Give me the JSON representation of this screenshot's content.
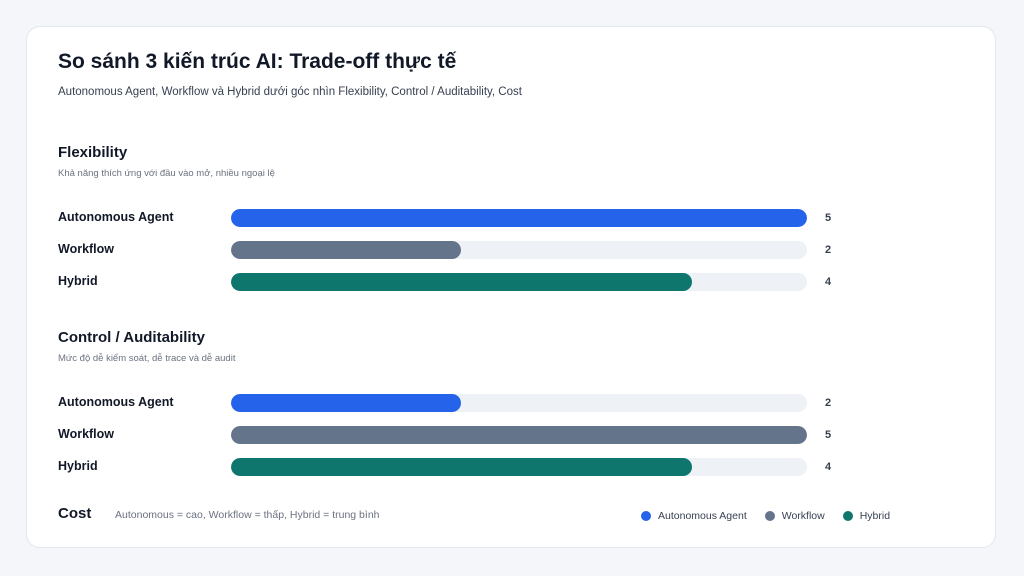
{
  "title": "So sánh 3 kiến trúc AI: Trade-off thực tế",
  "subtitle": "Autonomous Agent, Workflow và Hybrid dưới góc nhìn Flexibility, Control / Auditability, Cost",
  "colors": {
    "autonomous": "#2563eb",
    "workflow": "#64748b",
    "hybrid": "#0f766e",
    "track": "#eef1f6"
  },
  "chart_data": [
    {
      "type": "bar",
      "orientation": "horizontal",
      "title": "Flexibility",
      "subtitle": "Khả năng thích ứng với đầu vào mở, nhiều ngoại lệ",
      "categories": [
        "Autonomous Agent",
        "Workflow",
        "Hybrid"
      ],
      "values": [
        5,
        2,
        4
      ],
      "xlim": [
        0,
        5
      ],
      "grid": false
    },
    {
      "type": "bar",
      "orientation": "horizontal",
      "title": "Control / Auditability",
      "subtitle": "Mức độ dễ kiểm soát, dễ trace và dễ audit",
      "categories": [
        "Autonomous Agent",
        "Workflow",
        "Hybrid"
      ],
      "values": [
        2,
        5,
        4
      ],
      "xlim": [
        0,
        5
      ],
      "grid": false
    }
  ],
  "cost": {
    "label": "Cost",
    "note": "Autonomous = cao, Workflow = thấp, Hybrid = trung bình"
  },
  "legend": {
    "placement": "bottom-right",
    "items": [
      "Autonomous Agent",
      "Workflow",
      "Hybrid"
    ]
  }
}
